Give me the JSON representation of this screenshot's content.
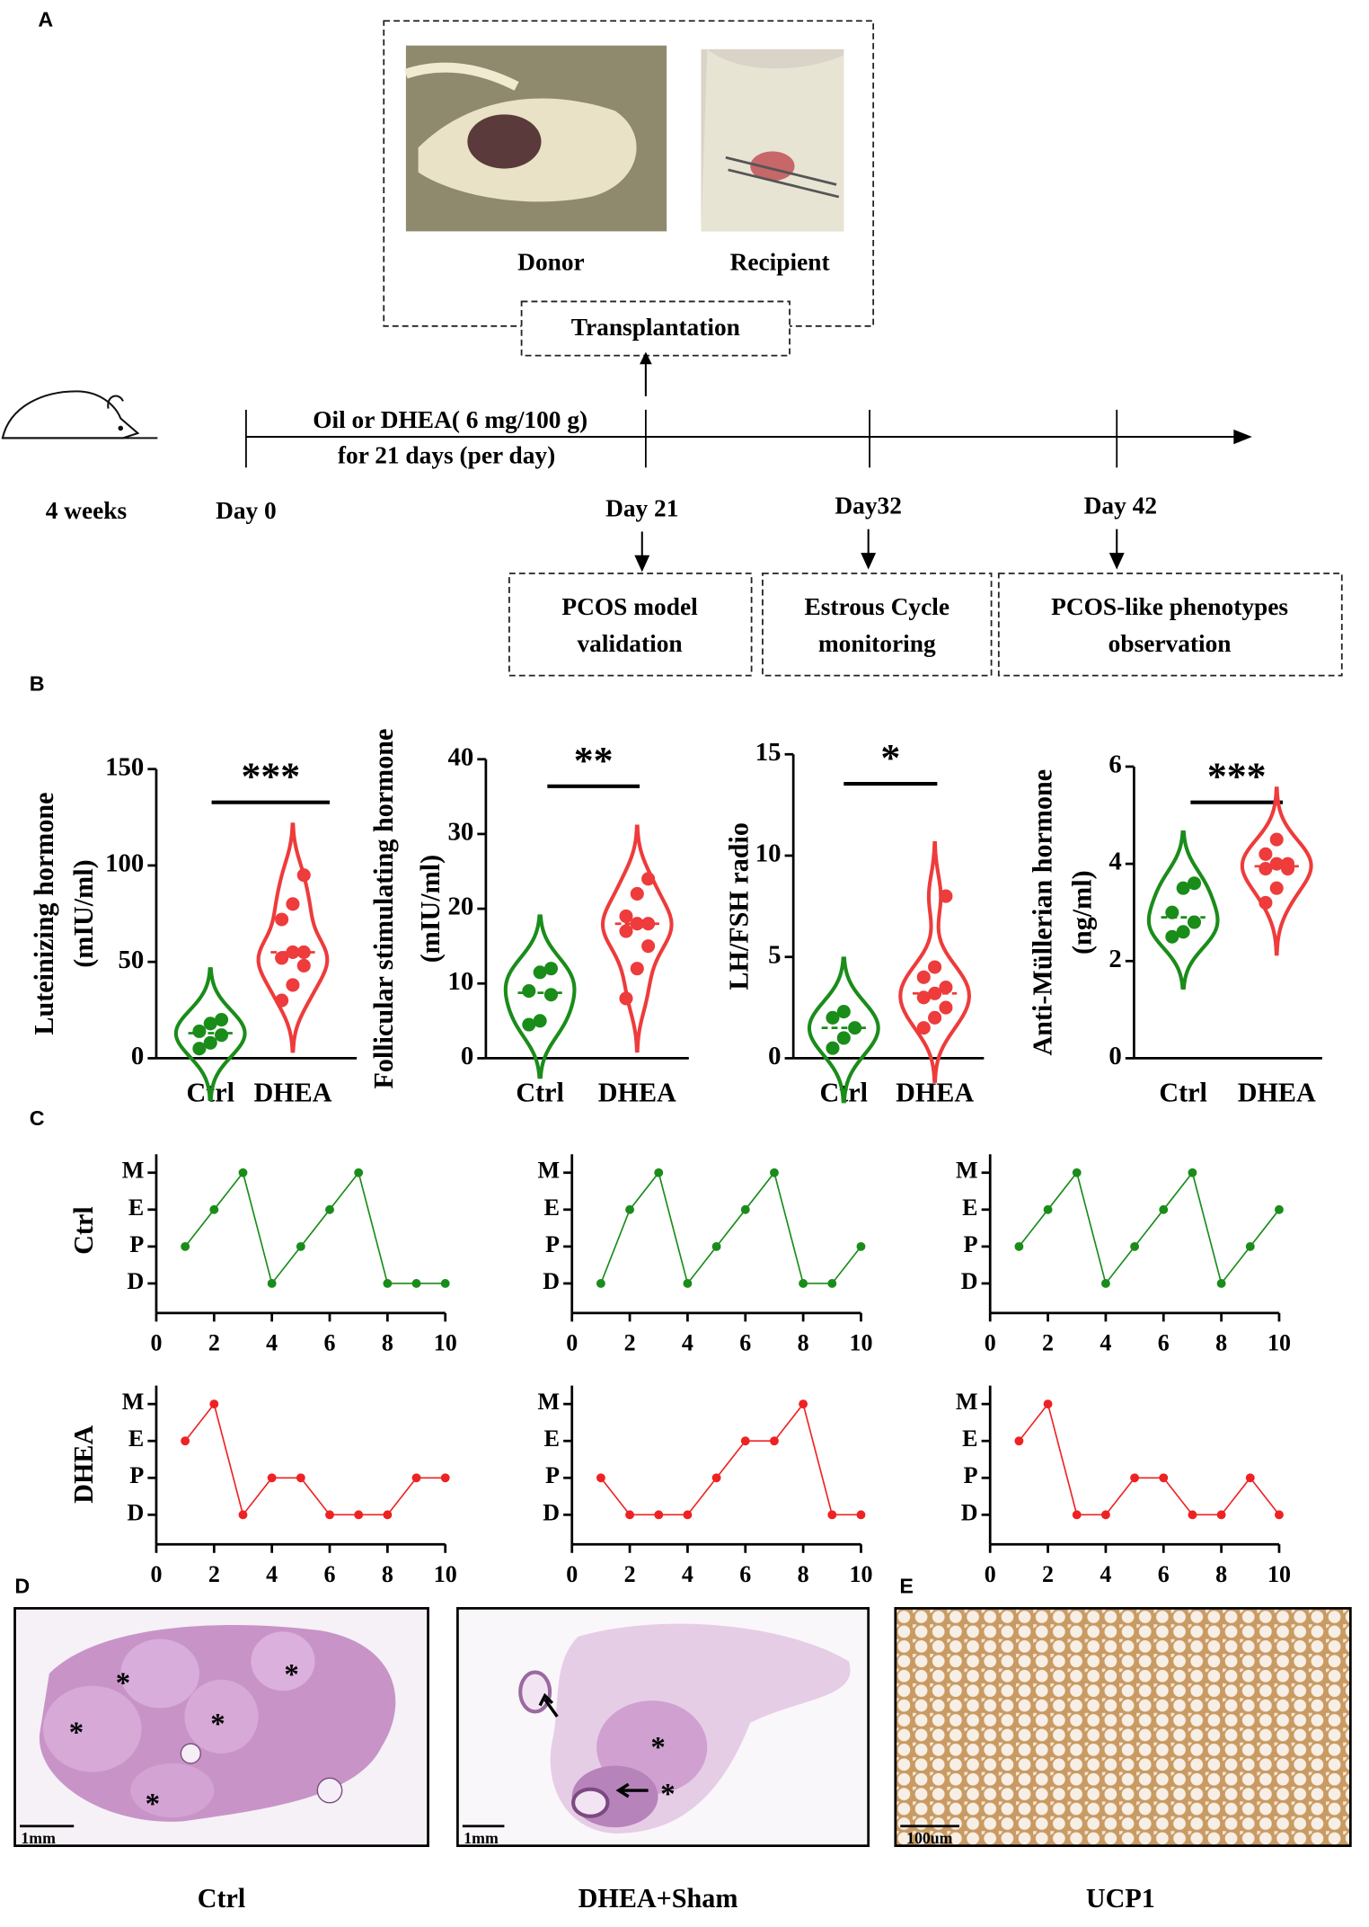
{
  "panel_labels": [
    "A",
    "B",
    "C",
    "D",
    "E"
  ],
  "timeline": {
    "transplant_photos": [
      "Donor",
      "Recipient"
    ],
    "transplant_label": "Transplantation",
    "treatment": [
      "Oil or DHEA( 6 mg/100 g)",
      "for 21 days (per day)"
    ],
    "start_age": "4 weeks",
    "days": [
      "Day 0",
      "Day 21",
      "Day32",
      "Day 42"
    ],
    "stages": [
      [
        "PCOS model",
        "validation"
      ],
      [
        "Estrous Cycle",
        "monitoring"
      ],
      [
        "PCOS-like phenotypes",
        "observation"
      ]
    ]
  },
  "chart_data": [
    {
      "type": "violin",
      "y_label": [
        "Luteinizing hormone",
        "(mIU/ml)"
      ],
      "categories": [
        "Ctrl",
        "DHEA"
      ],
      "values": [
        [
          5,
          8,
          12,
          14,
          18,
          20
        ],
        [
          30,
          38,
          48,
          52,
          55,
          55,
          72,
          80,
          95
        ]
      ],
      "colors": [
        "#1a8c1a",
        "#ee3b3b"
      ],
      "ylim": [
        0,
        150
      ],
      "yticks": [
        0,
        50,
        100,
        150
      ],
      "significance": "***"
    },
    {
      "type": "violin",
      "y_label": [
        "Follicular stimulating hormone",
        "(mIU/ml)"
      ],
      "categories": [
        "Ctrl",
        "DHEA"
      ],
      "values": [
        [
          4.5,
          5,
          8.5,
          9,
          11.5,
          12
        ],
        [
          8,
          12,
          15,
          17,
          18,
          18,
          19,
          22,
          24
        ]
      ],
      "colors": [
        "#1a8c1a",
        "#ee3b3b"
      ],
      "ylim": [
        0,
        40
      ],
      "yticks": [
        0,
        10,
        20,
        30,
        40
      ],
      "significance": "**"
    },
    {
      "type": "violin",
      "y_label": [
        "LH/FSH radio"
      ],
      "categories": [
        "Ctrl",
        "DHEA"
      ],
      "values": [
        [
          0.5,
          1,
          1.5,
          2,
          2.3
        ],
        [
          1.5,
          2,
          2.5,
          3,
          3.2,
          3.5,
          4,
          4.5,
          8
        ]
      ],
      "colors": [
        "#1a8c1a",
        "#ee3b3b"
      ],
      "ylim": [
        0,
        15
      ],
      "yticks": [
        0,
        5,
        10,
        15
      ],
      "significance": "*"
    },
    {
      "type": "violin",
      "y_label": [
        "Anti-Müllerian hormone",
        "(ng/ml)"
      ],
      "categories": [
        "Ctrl",
        "DHEA"
      ],
      "values": [
        [
          2.5,
          2.6,
          2.8,
          3,
          3.5,
          3.6
        ],
        [
          3.2,
          3.5,
          3.9,
          3.9,
          4,
          4,
          4.2,
          4.5
        ]
      ],
      "colors": [
        "#1a8c1a",
        "#ee3b3b"
      ],
      "ylim": [
        0,
        6
      ],
      "yticks": [
        0,
        2,
        4,
        6
      ],
      "significance": "***"
    },
    {
      "type": "line",
      "x": [
        1,
        2,
        3,
        4,
        5,
        6,
        7,
        8,
        9,
        10
      ],
      "values": [
        2,
        3,
        4,
        1,
        2,
        3,
        4,
        1,
        1,
        1
      ],
      "color": "#1a8c1a",
      "xlim": [
        0,
        10
      ],
      "xticks": [
        0,
        2,
        4,
        6,
        8,
        10
      ],
      "ylim": [
        0.2,
        4.5
      ],
      "yticks": [
        {
          "value": 1,
          "label": "D"
        },
        {
          "value": 2,
          "label": "P"
        },
        {
          "value": 3,
          "label": "E"
        },
        {
          "value": 4,
          "label": "M"
        }
      ]
    },
    {
      "type": "line",
      "x": [
        1,
        2,
        3,
        4,
        5,
        6,
        7,
        8,
        9,
        10
      ],
      "values": [
        1,
        3,
        4,
        1,
        2,
        3,
        4,
        1,
        1,
        2
      ],
      "color": "#1a8c1a",
      "xlim": [
        0,
        10
      ],
      "xticks": [
        0,
        2,
        4,
        6,
        8,
        10
      ],
      "ylim": [
        0.2,
        4.5
      ],
      "yticks": [
        {
          "value": 1,
          "label": "D"
        },
        {
          "value": 2,
          "label": "P"
        },
        {
          "value": 3,
          "label": "E"
        },
        {
          "value": 4,
          "label": "M"
        }
      ]
    },
    {
      "type": "line",
      "x": [
        1,
        2,
        3,
        4,
        5,
        6,
        7,
        8,
        9,
        10
      ],
      "values": [
        2,
        3,
        4,
        1,
        2,
        3,
        4,
        1,
        2,
        3
      ],
      "color": "#1a8c1a",
      "xlim": [
        0,
        10
      ],
      "xticks": [
        0,
        2,
        4,
        6,
        8,
        10
      ],
      "ylim": [
        0.2,
        4.5
      ],
      "yticks": [
        {
          "value": 1,
          "label": "D"
        },
        {
          "value": 2,
          "label": "P"
        },
        {
          "value": 3,
          "label": "E"
        },
        {
          "value": 4,
          "label": "M"
        }
      ]
    },
    {
      "type": "line",
      "x": [
        1,
        2,
        3,
        4,
        5,
        6,
        7,
        8,
        9,
        10
      ],
      "values": [
        3,
        4,
        1,
        2,
        2,
        1,
        1,
        1,
        2,
        2
      ],
      "color": "#ee2222",
      "xlim": [
        0,
        10
      ],
      "xticks": [
        0,
        2,
        4,
        6,
        8,
        10
      ],
      "ylim": [
        0.2,
        4.5
      ],
      "yticks": [
        {
          "value": 1,
          "label": "D"
        },
        {
          "value": 2,
          "label": "P"
        },
        {
          "value": 3,
          "label": "E"
        },
        {
          "value": 4,
          "label": "M"
        }
      ]
    },
    {
      "type": "line",
      "x": [
        1,
        2,
        3,
        4,
        5,
        6,
        7,
        8,
        9,
        10
      ],
      "values": [
        2,
        1,
        1,
        1,
        2,
        3,
        3,
        4,
        1,
        1
      ],
      "color": "#ee2222",
      "xlim": [
        0,
        10
      ],
      "xticks": [
        0,
        2,
        4,
        6,
        8,
        10
      ],
      "ylim": [
        0.2,
        4.5
      ],
      "yticks": [
        {
          "value": 1,
          "label": "D"
        },
        {
          "value": 2,
          "label": "P"
        },
        {
          "value": 3,
          "label": "E"
        },
        {
          "value": 4,
          "label": "M"
        }
      ]
    },
    {
      "type": "line",
      "x": [
        1,
        2,
        3,
        4,
        5,
        6,
        7,
        8,
        9,
        10
      ],
      "values": [
        3,
        4,
        1,
        1,
        2,
        2,
        1,
        1,
        2,
        1
      ],
      "color": "#ee2222",
      "xlim": [
        0,
        10
      ],
      "xticks": [
        0,
        2,
        4,
        6,
        8,
        10
      ],
      "ylim": [
        0.2,
        4.5
      ],
      "yticks": [
        {
          "value": 1,
          "label": "D"
        },
        {
          "value": 2,
          "label": "P"
        },
        {
          "value": 3,
          "label": "E"
        },
        {
          "value": 4,
          "label": "M"
        }
      ]
    }
  ],
  "cycle_row_labels": [
    "Ctrl",
    "DHEA"
  ],
  "histology": [
    {
      "caption": "Ctrl",
      "scale_bar": "1mm",
      "marker": "*"
    },
    {
      "caption": "DHEA+Sham",
      "scale_bar": "1mm",
      "marker": "*"
    },
    {
      "caption": "UCP1",
      "scale_bar": "100um"
    }
  ]
}
